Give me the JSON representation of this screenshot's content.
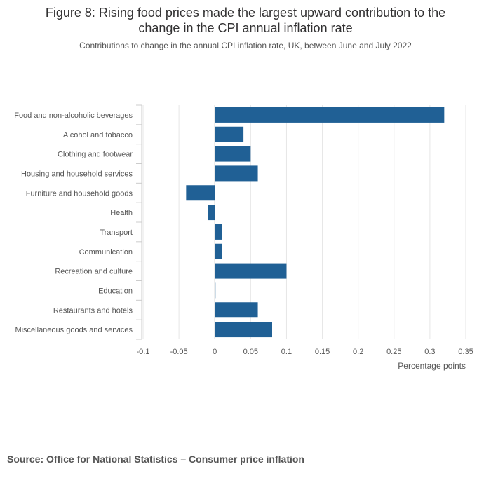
{
  "header": {
    "title_line1": "Figure 8: Rising food prices made the largest upward contribution to the",
    "title_line2": "change in the CPI annual inflation rate",
    "subtitle": "Contributions to change in the annual CPI inflation rate, UK, between June and July 2022"
  },
  "source": "Source: Office for National Statistics – Consumer price inflation",
  "colors": {
    "bar": "#206095",
    "grid": "#e6e6e6",
    "zero_line": "#bfbfbf"
  },
  "chart_data": {
    "type": "bar",
    "orientation": "horizontal",
    "categories": [
      "Food and non-alcoholic beverages",
      "Alcohol and tobacco",
      "Clothing and footwear",
      "Housing and household services",
      "Furniture and household goods",
      "Health",
      "Transport",
      "Communication",
      "Recreation and culture",
      "Education",
      "Restaurants and hotels",
      "Miscellaneous goods and services"
    ],
    "values": [
      0.32,
      0.04,
      0.05,
      0.06,
      -0.04,
      -0.01,
      0.01,
      0.01,
      0.1,
      0.0,
      0.06,
      0.08
    ],
    "xlabel": "Percentage points",
    "xlim": [
      -0.1,
      0.35
    ],
    "xticks": [
      -0.1,
      -0.05,
      0,
      0.05,
      0.1,
      0.15,
      0.2,
      0.25,
      0.3,
      0.35
    ],
    "xtick_labels": [
      "-0.1",
      "-0.05",
      "0",
      "0.05",
      "0.1",
      "0.15",
      "0.2",
      "0.25",
      "0.3",
      "0.35"
    ],
    "grid": true,
    "legend": "none"
  }
}
